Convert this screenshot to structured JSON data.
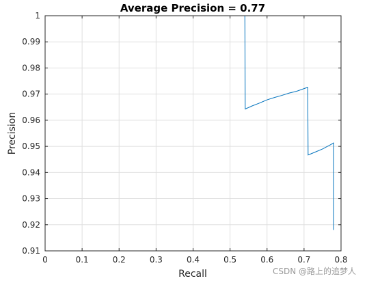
{
  "chart_data": {
    "type": "line",
    "title": "Average Precision = 0.77",
    "xlabel": "Recall",
    "ylabel": "Precision",
    "xlim": [
      0,
      0.8
    ],
    "ylim": [
      0.91,
      1.0
    ],
    "xticks": [
      "0",
      "0.1",
      "0.2",
      "0.3",
      "0.4",
      "0.5",
      "0.6",
      "0.7",
      "0.8"
    ],
    "yticks": [
      "0.91",
      "0.92",
      "0.93",
      "0.94",
      "0.95",
      "0.96",
      "0.97",
      "0.98",
      "0.99",
      "1"
    ],
    "grid": true,
    "series": [
      {
        "color": "#0072bd",
        "x": [
          0.0,
          0.54,
          0.54,
          0.541,
          0.56,
          0.58,
          0.6,
          0.62,
          0.64,
          0.66,
          0.68,
          0.7,
          0.71,
          0.71,
          0.711,
          0.73,
          0.75,
          0.77,
          0.78,
          0.78
        ],
        "y": [
          1.0,
          1.0,
          1.0,
          0.9643,
          0.9655,
          0.9666,
          0.9678,
          0.9687,
          0.9695,
          0.9704,
          0.9711,
          0.9721,
          0.9726,
          0.9726,
          0.9467,
          0.9478,
          0.949,
          0.9505,
          0.9513,
          0.918
        ]
      }
    ]
  },
  "watermark": "CSDN @路上的追梦人"
}
